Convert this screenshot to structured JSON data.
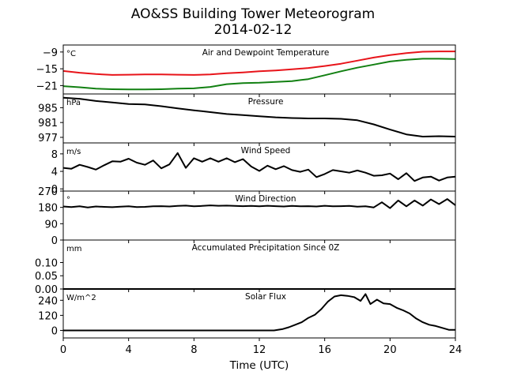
{
  "title": "AO&SS Building Tower Meteorogram",
  "subtitle": "2014-02-12",
  "xlabel": "Time (UTC)",
  "colors": {
    "temperature": "#e8141a",
    "dewpoint": "#128012",
    "default": "#000000"
  },
  "chart_data": {
    "type": "line",
    "x_ticks": [
      "0",
      "4",
      "8",
      "12",
      "16",
      "20",
      "24"
    ],
    "xlim": [
      0,
      24
    ],
    "panels": [
      {
        "key": "temp",
        "label": "Air and Dewpoint Temperature",
        "unit": "°C",
        "ylim": [
          -24,
          -6.5
        ],
        "y_ticks": [
          -9,
          -15,
          -21
        ],
        "y_tick_labels": [
          "−9",
          "−15",
          "−21"
        ],
        "series": [
          {
            "color": "temperature",
            "x": [
              0,
              1,
              2,
              3,
              4,
              5,
              6,
              7,
              8,
              9,
              10,
              11,
              12,
              13,
              14,
              15,
              16,
              17,
              18,
              19,
              20,
              21,
              22,
              23,
              24
            ],
            "y": [
              -15.8,
              -16.4,
              -16.9,
              -17.2,
              -17.1,
              -17.0,
              -17.0,
              -17.1,
              -17.2,
              -17.0,
              -16.6,
              -16.3,
              -15.9,
              -15.6,
              -15.2,
              -14.7,
              -14.0,
              -13.2,
              -12.1,
              -11.0,
              -10.1,
              -9.4,
              -8.9,
              -8.8,
              -8.8
            ]
          },
          {
            "color": "dewpoint",
            "x": [
              0,
              1,
              2,
              3,
              4,
              5,
              6,
              7,
              8,
              9,
              10,
              11,
              12,
              13,
              14,
              15,
              16,
              17,
              18,
              19,
              20,
              21,
              22,
              23,
              24
            ],
            "y": [
              -21.2,
              -21.6,
              -22.1,
              -22.3,
              -22.4,
              -22.4,
              -22.3,
              -22.1,
              -22.0,
              -21.5,
              -20.5,
              -20.1,
              -20.0,
              -19.7,
              -19.4,
              -18.7,
              -17.3,
              -15.9,
              -14.6,
              -13.5,
              -12.4,
              -11.8,
              -11.4,
              -11.4,
              -11.5
            ]
          }
        ]
      },
      {
        "key": "pressure",
        "label": "Pressure",
        "unit": "hPa",
        "ylim": [
          975.5,
          988.7
        ],
        "y_ticks": [
          985,
          981,
          977
        ],
        "y_tick_labels": [
          "985",
          "981",
          "977"
        ],
        "series": [
          {
            "color": "default",
            "x": [
              0,
              1,
              2,
              3,
              4,
              5,
              6,
              7,
              8,
              9,
              10,
              11,
              12,
              13,
              14,
              15,
              16,
              17,
              18,
              19,
              20,
              21,
              22,
              23,
              24
            ],
            "y": [
              987.7,
              987.4,
              986.8,
              986.4,
              986.0,
              985.9,
              985.4,
              984.8,
              984.3,
              983.8,
              983.3,
              983.0,
              982.7,
              982.4,
              982.2,
              982.1,
              982.1,
              982.0,
              981.6,
              980.5,
              979.1,
              977.8,
              977.2,
              977.3,
              977.2
            ]
          }
        ]
      },
      {
        "key": "wind_speed",
        "label": "Wind Speed",
        "unit": "m/s",
        "ylim": [
          -0.5,
          10.5
        ],
        "y_ticks": [
          8,
          4,
          0
        ],
        "y_tick_labels": [
          "8",
          "4",
          "0"
        ],
        "series": [
          {
            "color": "default",
            "x": [
              0,
              0.5,
              1,
              1.5,
              2,
              2.5,
              3,
              3.5,
              4,
              4.5,
              5,
              5.5,
              6,
              6.5,
              7,
              7.5,
              8,
              8.5,
              9,
              9.5,
              10,
              10.5,
              11,
              11.5,
              12,
              12.5,
              13,
              13.5,
              14,
              14.5,
              15,
              15.5,
              16,
              16.5,
              17,
              17.5,
              18,
              18.5,
              19,
              19.5,
              20,
              20.5,
              21,
              21.5,
              22,
              22.5,
              23,
              23.5,
              24
            ],
            "y": [
              4.8,
              4.6,
              5.5,
              5.0,
              4.4,
              5.4,
              6.3,
              6.2,
              6.9,
              6.0,
              5.5,
              6.5,
              4.7,
              5.6,
              8.2,
              4.8,
              7.0,
              6.2,
              7.0,
              6.2,
              7.0,
              6.1,
              6.8,
              5.1,
              4.1,
              5.3,
              4.5,
              5.2,
              4.3,
              3.9,
              4.4,
              2.7,
              3.4,
              4.3,
              4.0,
              3.7,
              4.2,
              3.7,
              3.0,
              3.1,
              3.5,
              2.2,
              3.6,
              1.8,
              2.6,
              2.8,
              1.9,
              2.6,
              2.8
            ]
          }
        ]
      },
      {
        "key": "wind_dir",
        "label": "Wind Direction",
        "unit": "°",
        "ylim": [
          0,
          270
        ],
        "y_ticks": [
          270,
          180,
          90,
          0
        ],
        "y_tick_labels": [
          "270",
          "180",
          "90",
          "0"
        ],
        "series": [
          {
            "color": "default",
            "x": [
              0,
              0.5,
              1,
              1.5,
              2,
              2.5,
              3,
              3.5,
              4,
              4.5,
              5,
              5.5,
              6,
              6.5,
              7,
              7.5,
              8,
              8.5,
              9,
              9.5,
              10,
              10.5,
              11,
              11.5,
              12,
              12.5,
              13,
              13.5,
              14,
              14.5,
              15,
              15.5,
              16,
              16.5,
              17,
              17.5,
              18,
              18.5,
              19,
              19.5,
              20,
              20.5,
              21,
              21.5,
              22,
              22.5,
              23,
              23.5,
              24
            ],
            "y": [
              185,
              182,
              186,
              180,
              185,
              183,
              181,
              184,
              186,
              182,
              183,
              186,
              187,
              185,
              188,
              190,
              186,
              188,
              191,
              189,
              190,
              188,
              187,
              188,
              186,
              189,
              187,
              185,
              188,
              186,
              187,
              185,
              189,
              186,
              187,
              188,
              184,
              186,
              180,
              208,
              176,
              218,
              186,
              218,
              190,
              224,
              198,
              226,
              192
            ]
          }
        ]
      },
      {
        "key": "precip",
        "label": "Accumulated Precipitation Since 0Z",
        "unit": "mm",
        "ylim": [
          0,
          0.185
        ],
        "y_ticks": [
          0.1,
          0.05,
          0.0
        ],
        "y_tick_labels": [
          "0.10",
          "0.05",
          "0.00"
        ],
        "series": [
          {
            "color": "default",
            "x": [
              0,
              24
            ],
            "y": [
              0,
              0
            ]
          }
        ]
      },
      {
        "key": "solar",
        "label": "Solar Flux",
        "unit": "W/m^2",
        "ylim": [
          -60,
          330
        ],
        "y_ticks": [
          240,
          120,
          0
        ],
        "y_tick_labels": [
          "240",
          "120",
          "0"
        ],
        "series": [
          {
            "color": "default",
            "x": [
              0,
              12.9,
              13.4,
              13.8,
              14.2,
              14.6,
              15.0,
              15.4,
              15.8,
              16.2,
              16.6,
              17.0,
              17.4,
              17.8,
              18.2,
              18.5,
              18.8,
              19.2,
              19.6,
              20.0,
              20.4,
              20.8,
              21.2,
              21.6,
              22.0,
              22.4,
              22.8,
              23.2,
              23.6,
              24
            ],
            "y": [
              0,
              0,
              10,
              25,
              45,
              65,
              100,
              125,
              170,
              230,
              270,
              280,
              275,
              265,
              235,
              290,
              210,
              245,
              215,
              210,
              180,
              160,
              135,
              95,
              65,
              45,
              35,
              20,
              5,
              5
            ]
          }
        ]
      }
    ]
  }
}
